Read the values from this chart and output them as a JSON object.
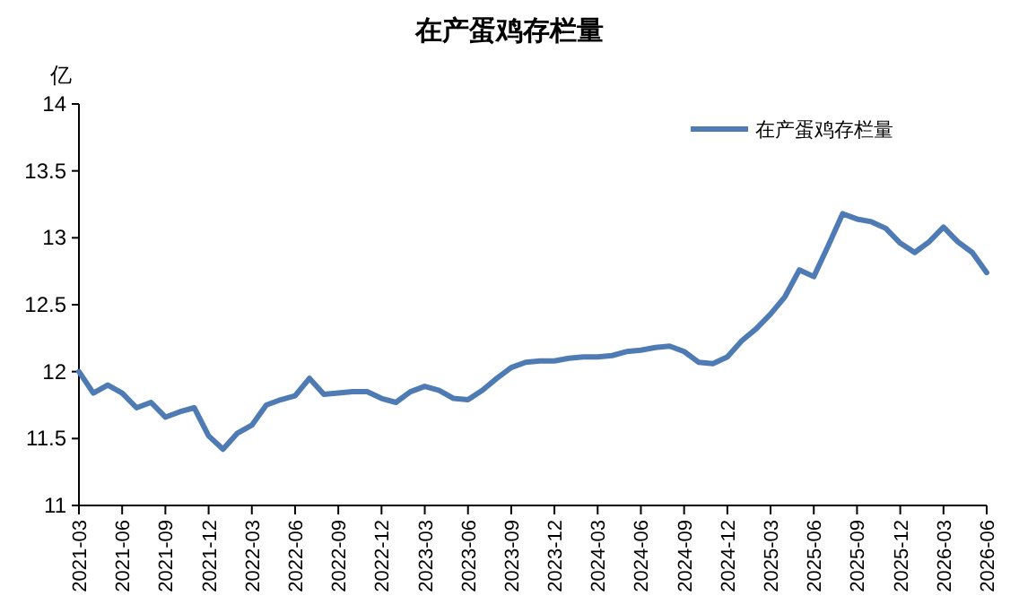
{
  "chart_data": {
    "type": "line",
    "title": "在产蛋鸡存栏量",
    "ylabel": "亿",
    "categories": [
      "2021-03",
      null,
      null,
      "2021-06",
      null,
      null,
      "2021-09",
      null,
      null,
      "2021-12",
      null,
      null,
      "2022-03",
      null,
      null,
      "2022-06",
      null,
      null,
      "2022-09",
      null,
      null,
      "2022-12",
      null,
      null,
      "2023-03",
      null,
      null,
      "2023-06",
      null,
      null,
      "2023-09",
      null,
      null,
      "2023-12",
      null,
      null,
      "2024-03",
      null,
      null,
      "2024-06",
      null,
      null,
      "2024-09",
      null,
      null,
      "2024-12",
      null,
      null,
      "2025-03",
      null,
      null,
      "2025-06",
      null,
      null,
      "2025-09",
      null,
      null,
      "2025-12",
      null,
      null,
      "2026-03",
      null,
      null,
      "2026-06"
    ],
    "series": [
      {
        "name": "在产蛋鸡存栏量",
        "color": "#4f7bb5",
        "values": [
          12.0,
          11.84,
          11.9,
          11.84,
          11.73,
          11.77,
          11.66,
          11.7,
          11.73,
          11.52,
          11.42,
          11.54,
          11.6,
          11.75,
          11.79,
          11.82,
          11.95,
          11.83,
          11.84,
          11.85,
          11.85,
          11.8,
          11.77,
          11.85,
          11.89,
          11.86,
          11.8,
          11.79,
          11.86,
          11.95,
          12.03,
          12.07,
          12.08,
          12.08,
          12.1,
          12.11,
          12.11,
          12.12,
          12.15,
          12.16,
          12.18,
          12.19,
          12.15,
          12.07,
          12.06,
          12.11,
          12.23,
          12.32,
          12.43,
          12.56,
          12.76,
          12.71,
          12.94,
          13.18,
          13.14,
          13.12,
          13.07,
          12.96,
          12.89,
          12.97,
          13.08,
          12.97,
          12.89,
          12.74
        ]
      }
    ],
    "ylim": [
      11,
      14
    ],
    "yticks": [
      11,
      11.5,
      12,
      12.5,
      13,
      13.5,
      14
    ],
    "grid": false,
    "legend": "top right",
    "marker": "none",
    "line_style": "solid"
  }
}
